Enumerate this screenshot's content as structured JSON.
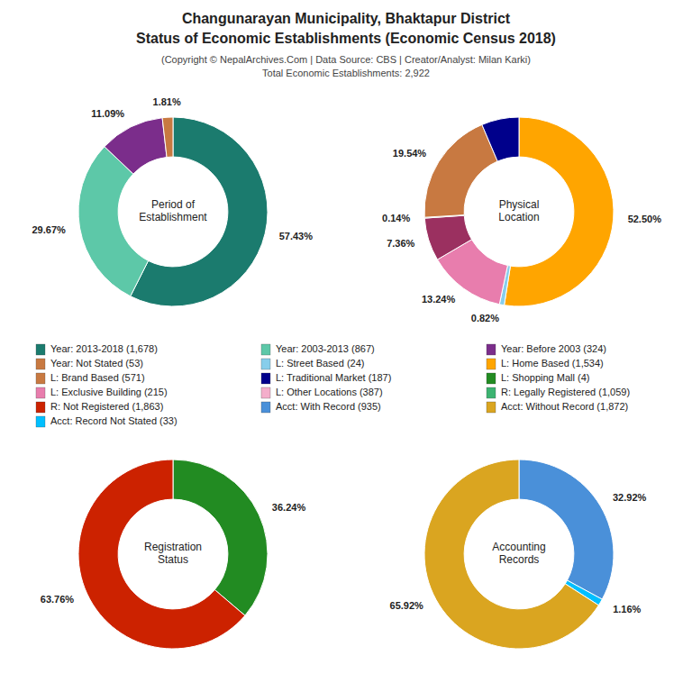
{
  "title": [
    "Changunarayan Municipality, Bhaktapur District",
    "Status of Economic Establishments (Economic Census 2018)"
  ],
  "subtitle": [
    "(Copyright © NepalArchives.Com | Data Source: CBS | Creator/Analyst: Milan Karki)",
    "Total Economic Establishments: 2,922"
  ],
  "chart_data": [
    {
      "type": "pie",
      "title": "Period of\nEstablishment",
      "values": [
        57.43,
        29.67,
        11.09,
        1.81
      ],
      "colors": [
        "#1B7B6E",
        "#5DC8A8",
        "#7B2D8B",
        "#C87941"
      ],
      "value_labels": [
        "57.43%",
        "29.67%",
        "11.09%",
        "1.81%"
      ],
      "data_labels": true
    },
    {
      "type": "pie",
      "title": "Physical\nLocation",
      "values": [
        52.5,
        0.82,
        13.24,
        7.36,
        0.14,
        19.54,
        6.4
      ],
      "colors": [
        "#FFA500",
        "#87CEEB",
        "#E87DAD",
        "#9B3060",
        "#228B22",
        "#C87941",
        "#00008B"
      ],
      "value_labels": [
        "52.50%",
        "0.82%",
        "13.24%",
        "7.36%",
        "0.14%",
        "19.54%",
        null
      ],
      "data_labels": true
    },
    {
      "type": "pie",
      "title": "Registration\nStatus",
      "values": [
        36.24,
        63.76
      ],
      "colors": [
        "#228B22",
        "#CC2200"
      ],
      "value_labels": [
        "36.24%",
        "63.76%"
      ],
      "data_labels": true
    },
    {
      "type": "pie",
      "title": "Accounting\nRecords",
      "values": [
        32.92,
        1.16,
        65.92
      ],
      "colors": [
        "#4A90D9",
        "#00BFFF",
        "#DAA520"
      ],
      "value_labels": [
        "32.92%",
        "1.16%",
        "65.92%"
      ],
      "data_labels": true
    }
  ],
  "legend_entries": [
    {
      "name": "Year: 2013-2018 (1,678)",
      "color": "#1B7B6E"
    },
    {
      "name": "Year: 2003-2013 (867)",
      "color": "#5DC8A8"
    },
    {
      "name": "Year: Before 2003 (324)",
      "color": "#7B2D8B"
    },
    {
      "name": "Year: Not Stated (53)",
      "color": "#C87941"
    },
    {
      "name": "L: Street Based (24)",
      "color": "#87CEEB"
    },
    {
      "name": "L: Home Based (1,534)",
      "color": "#FFA500"
    },
    {
      "name": "L: Brand Based (571)",
      "color": "#C87941"
    },
    {
      "name": "L: Traditional Market (187)",
      "color": "#00008B"
    },
    {
      "name": "L: Shopping Mall (4)",
      "color": "#228B22"
    },
    {
      "name": "L: Exclusive Building (215)",
      "color": "#E87DAD"
    },
    {
      "name": "L: Other Locations (387)",
      "color": "#F4AECB"
    },
    {
      "name": "R: Legally Registered (1,059)",
      "color": "#3CB371"
    },
    {
      "name": "R: Not Registered (1,863)",
      "color": "#CC2200"
    },
    {
      "name": "Acct: With Record (935)",
      "color": "#4A90D9"
    },
    {
      "name": "Acct: Without Record (1,872)",
      "color": "#DAA520"
    },
    {
      "name": "Acct: Record Not Stated (33)",
      "color": "#00BFFF"
    }
  ]
}
